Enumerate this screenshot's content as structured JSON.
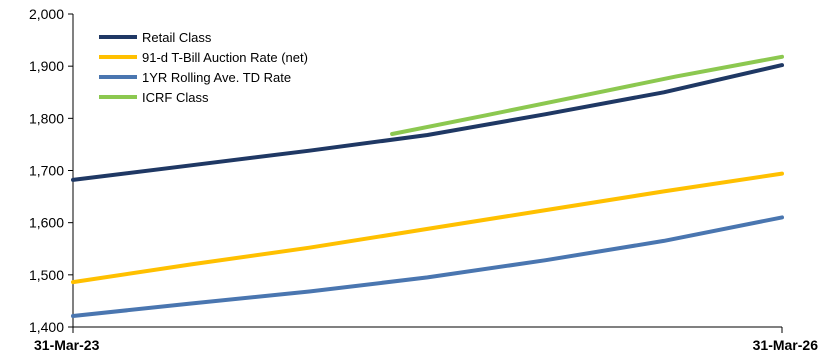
{
  "chart_data": {
    "type": "line",
    "x_labels": [
      "31-Mar-23",
      "31-Mar-26"
    ],
    "x": [
      0,
      3
    ],
    "ylim": [
      1400,
      2000
    ],
    "yticks": [
      1400,
      1500,
      1600,
      1700,
      1800,
      1900,
      2000
    ],
    "ytick_labels": [
      "1,400",
      "1,500",
      "1,600",
      "1,700",
      "1,800",
      "1,900",
      "2,000"
    ],
    "grid": false,
    "legend_position": "top-left",
    "series": [
      {
        "name": "Retail Class",
        "color": "#1f3864",
        "x": [
          0,
          0.5,
          1,
          1.5,
          2,
          2.5,
          3
        ],
        "values": [
          1682,
          1710,
          1738,
          1768,
          1808,
          1850,
          1902
        ]
      },
      {
        "name": "91-d T-Bill Auction Rate (net)",
        "color": "#ffc000",
        "x": [
          0,
          0.5,
          1,
          1.5,
          2,
          2.5,
          3
        ],
        "values": [
          1486,
          1520,
          1552,
          1588,
          1624,
          1660,
          1694
        ]
      },
      {
        "name": "1YR Rolling Ave. TD Rate",
        "color": "#4a76b0",
        "x": [
          0,
          0.5,
          1,
          1.5,
          2,
          2.5,
          3
        ],
        "values": [
          1421,
          1445,
          1468,
          1495,
          1528,
          1565,
          1610
        ]
      },
      {
        "name": "ICRF Class",
        "color": "#8cc850",
        "x": [
          1.35,
          1.75,
          2.15,
          2.55,
          3
        ],
        "values": [
          1770,
          1806,
          1843,
          1880,
          1918
        ]
      }
    ]
  }
}
